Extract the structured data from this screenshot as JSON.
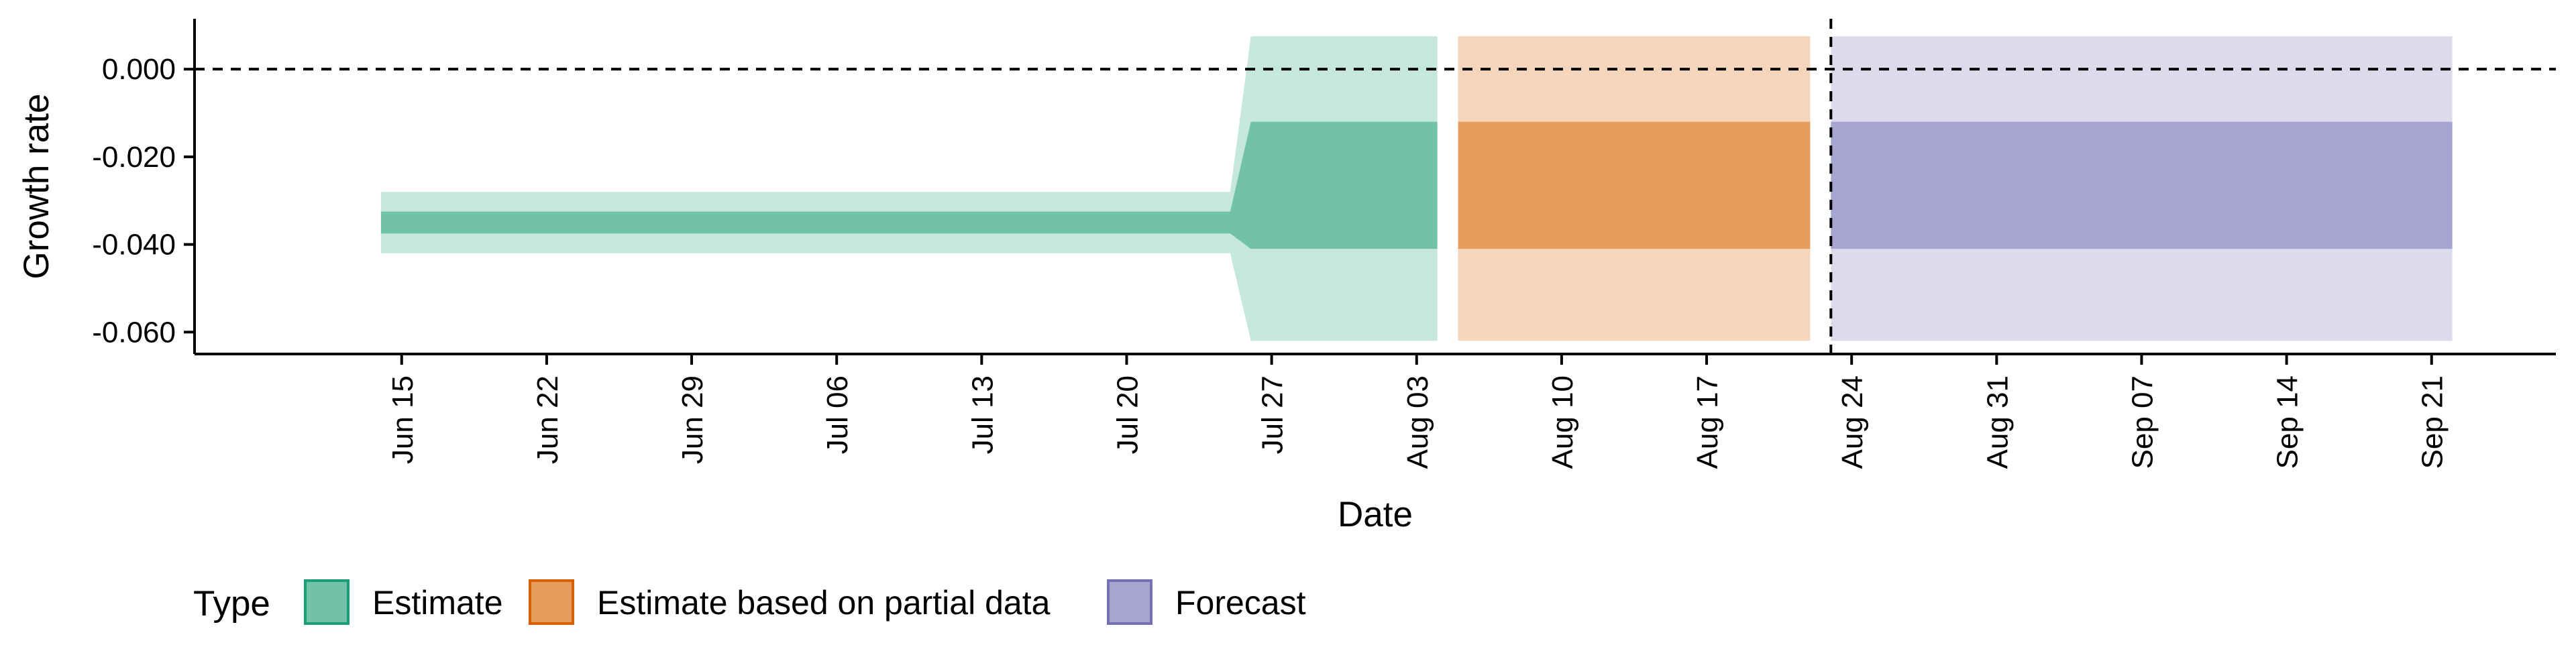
{
  "chart_data": {
    "type": "area",
    "xlabel": "Date",
    "ylabel": "Growth rate",
    "x_type": "date",
    "xlim": [
      "2020-06-05",
      "2020-09-27"
    ],
    "ylim": [
      -0.065,
      0.0115
    ],
    "x_ticks": [
      {
        "date": "2020-06-15",
        "label": "Jun 15"
      },
      {
        "date": "2020-06-22",
        "label": "Jun 22"
      },
      {
        "date": "2020-06-29",
        "label": "Jun 29"
      },
      {
        "date": "2020-07-06",
        "label": "Jul 06"
      },
      {
        "date": "2020-07-13",
        "label": "Jul 13"
      },
      {
        "date": "2020-07-20",
        "label": "Jul 20"
      },
      {
        "date": "2020-07-27",
        "label": "Jul 27"
      },
      {
        "date": "2020-08-03",
        "label": "Aug 03"
      },
      {
        "date": "2020-08-10",
        "label": "Aug 10"
      },
      {
        "date": "2020-08-17",
        "label": "Aug 17"
      },
      {
        "date": "2020-08-24",
        "label": "Aug 24"
      },
      {
        "date": "2020-08-31",
        "label": "Aug 31"
      },
      {
        "date": "2020-09-07",
        "label": "Sep 07"
      },
      {
        "date": "2020-09-14",
        "label": "Sep 14"
      },
      {
        "date": "2020-09-21",
        "label": "Sep 21"
      }
    ],
    "y_ticks": [
      {
        "value": 0.0,
        "label": "0.000"
      },
      {
        "value": -0.02,
        "label": "-0.020"
      },
      {
        "value": -0.04,
        "label": "-0.040"
      },
      {
        "value": -0.06,
        "label": "-0.060"
      }
    ],
    "reference_lines": [
      {
        "axis": "y",
        "value": 0.0,
        "style": "dashed"
      },
      {
        "axis": "x",
        "value": "2020-08-23",
        "style": "dashed"
      }
    ],
    "legend": {
      "title": "Type",
      "position": "bottom",
      "entries": [
        {
          "label": "Estimate",
          "fill": "#71c2a9",
          "border": "#1b9e77"
        },
        {
          "label": "Estimate based on partial data",
          "fill": "#e59c5d",
          "border": "#d95f02"
        },
        {
          "label": "Forecast",
          "fill": "#a7a4d0",
          "border": "#7570b3"
        }
      ]
    },
    "series": [
      {
        "name": "Estimate",
        "inner_color": "#71c2a9",
        "outer_color": "#c6e7dd",
        "points": [
          {
            "date": "2020-06-14",
            "lower90": -0.042,
            "lower50": -0.0375,
            "upper50": -0.0325,
            "upper90": -0.028
          },
          {
            "date": "2020-07-25",
            "lower90": -0.042,
            "lower50": -0.0375,
            "upper50": -0.0325,
            "upper90": -0.028
          },
          {
            "date": "2020-07-26",
            "lower90": -0.062,
            "lower50": -0.041,
            "upper50": -0.012,
            "upper90": 0.0075
          },
          {
            "date": "2020-08-04",
            "lower90": -0.062,
            "lower50": -0.041,
            "upper50": -0.012,
            "upper90": 0.0075
          }
        ]
      },
      {
        "name": "Estimate based on partial data",
        "inner_color": "#e59c5d",
        "outer_color": "#f5d6bd",
        "points": [
          {
            "date": "2020-08-05",
            "lower90": -0.062,
            "lower50": -0.041,
            "upper50": -0.012,
            "upper90": 0.0075
          },
          {
            "date": "2020-08-22",
            "lower90": -0.062,
            "lower50": -0.041,
            "upper50": -0.012,
            "upper90": 0.0075
          }
        ]
      },
      {
        "name": "Forecast",
        "inner_color": "#a7a4d0",
        "outer_color": "#dcdbec",
        "points": [
          {
            "date": "2020-08-23",
            "lower90": -0.062,
            "lower50": -0.041,
            "upper50": -0.012,
            "upper90": 0.0075
          },
          {
            "date": "2020-09-22",
            "lower90": -0.062,
            "lower50": -0.041,
            "upper50": -0.012,
            "upper90": 0.0075
          }
        ]
      }
    ]
  }
}
